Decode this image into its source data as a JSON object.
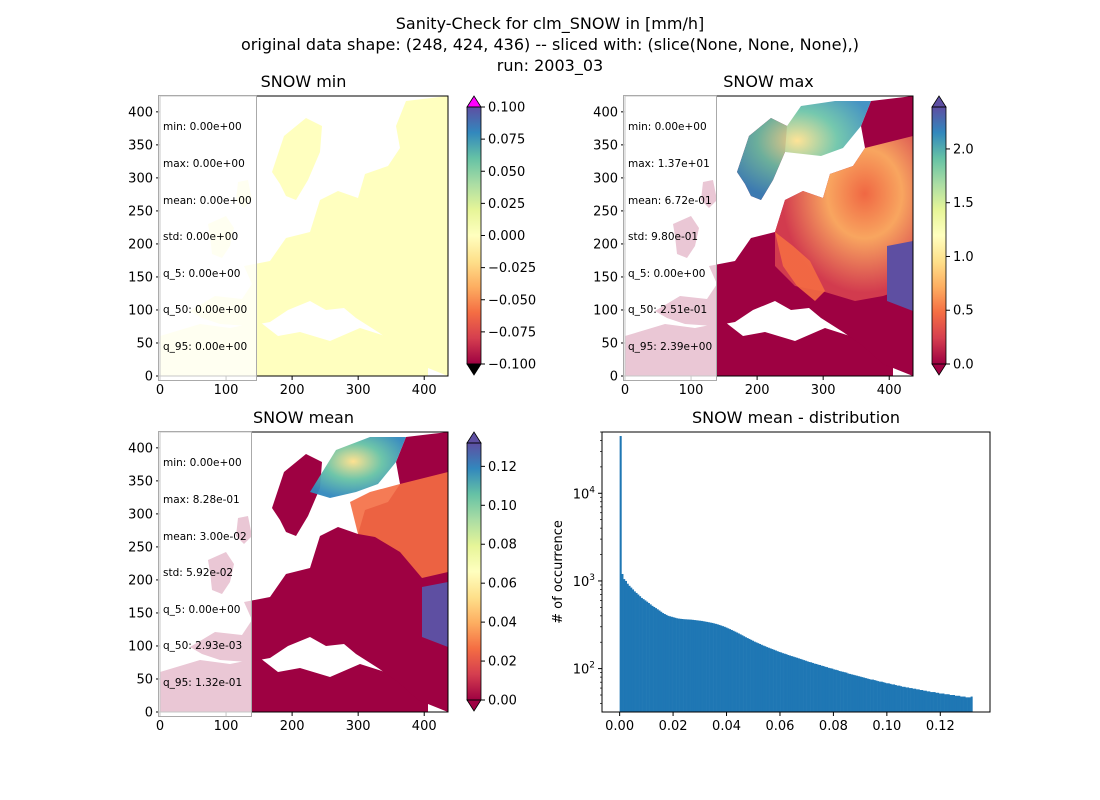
{
  "figure": {
    "title_lines": [
      "Sanity-Check for clm_SNOW in [mm/h]",
      "original data shape: (248, 424, 436) -- sliced with: (slice(None, None, None),)",
      "run: 2003_03"
    ]
  },
  "panels": [
    {
      "title": "SNOW min",
      "stats": [
        "min: 0.00e+00",
        "max: 0.00e+00",
        "mean: 0.00e+00",
        "std: 0.00e+00",
        "q_5: 0.00e+00",
        "q_50: 0.00e+00",
        "q_95: 0.00e+00"
      ],
      "colorbar_ticks": [
        "0.100",
        "0.075",
        "0.050",
        "0.025",
        "0.000",
        "−0.025",
        "−0.050",
        "−0.075",
        "−0.100"
      ]
    },
    {
      "title": "SNOW max",
      "stats": [
        "min: 0.00e+00",
        "max: 1.37e+01",
        "mean: 6.72e-01",
        "std: 9.80e-01",
        "q_5: 0.00e+00",
        "q_50: 2.51e-01",
        "q_95: 2.39e+00"
      ],
      "colorbar_ticks": [
        "2.0",
        "1.5",
        "1.0",
        "0.5",
        "0.0"
      ]
    },
    {
      "title": "SNOW mean",
      "stats": [
        "min: 0.00e+00",
        "max: 8.28e-01",
        "mean: 3.00e-02",
        "std: 5.92e-02",
        "q_5: 0.00e+00",
        "q_50: 2.93e-03",
        "q_95: 1.32e-01"
      ],
      "colorbar_ticks": [
        "0.12",
        "0.10",
        "0.08",
        "0.06",
        "0.04",
        "0.02",
        "0.00"
      ]
    }
  ],
  "colors": {
    "spectral_low": "#9e0142",
    "spectral_high": "#5e4fa2",
    "over_magenta": "#ff00ff",
    "under_black": "#000000",
    "min_fill": "#ffffbf",
    "hist_bar": "#1f77b4"
  },
  "chart_data": [
    {
      "type": "heatmap",
      "title": "SNOW min",
      "x_ticks": [
        0,
        100,
        200,
        300,
        400
      ],
      "y_ticks": [
        0,
        50,
        100,
        150,
        200,
        250,
        300,
        350,
        400
      ],
      "xlim": [
        0,
        436
      ],
      "ylim": [
        0,
        424
      ],
      "colorbar_range": [
        -0.1,
        0.1
      ]
    },
    {
      "type": "heatmap",
      "title": "SNOW max",
      "x_ticks": [
        0,
        100,
        200,
        300,
        400
      ],
      "y_ticks": [
        0,
        50,
        100,
        150,
        200,
        250,
        300,
        350,
        400
      ],
      "xlim": [
        0,
        436
      ],
      "ylim": [
        0,
        424
      ],
      "colorbar_range": [
        0,
        2.39
      ]
    },
    {
      "type": "heatmap",
      "title": "SNOW mean",
      "x_ticks": [
        0,
        100,
        200,
        300,
        400
      ],
      "y_ticks": [
        0,
        50,
        100,
        150,
        200,
        250,
        300,
        350,
        400
      ],
      "xlim": [
        0,
        436
      ],
      "ylim": [
        0,
        424
      ],
      "colorbar_range": [
        0,
        0.132
      ]
    },
    {
      "type": "bar",
      "title": "SNOW mean - distribution",
      "ylabel": "# of occurrence",
      "y_scale": "log",
      "xlim": [
        -0.0066,
        0.1386
      ],
      "ylim": [
        32,
        50000
      ],
      "x_ticks": [
        "0.00",
        "0.02",
        "0.04",
        "0.06",
        "0.08",
        "0.10",
        "0.12"
      ],
      "y_tick_exponents": [
        2,
        3,
        4
      ],
      "bin_range": [
        0,
        0.132
      ],
      "bins": 200,
      "counts": [
        45000,
        1200,
        1050,
        1000,
        930,
        880,
        840,
        800,
        760,
        730,
        700,
        670,
        640,
        620,
        600,
        580,
        560,
        540,
        520,
        505,
        490,
        475,
        460,
        445,
        430,
        420,
        410,
        400,
        395,
        390,
        385,
        380,
        375,
        372,
        370,
        368,
        366,
        365,
        364,
        363,
        362,
        360,
        358,
        356,
        354,
        352,
        350,
        347,
        344,
        341,
        338,
        335,
        332,
        328,
        324,
        320,
        315,
        310,
        305,
        300,
        294,
        288,
        282,
        276,
        270,
        264,
        258,
        252,
        246,
        240,
        234,
        228,
        223,
        218,
        213,
        208,
        203,
        199,
        195,
        191,
        187,
        183,
        180,
        176,
        173,
        170,
        167,
        164,
        161,
        158,
        155,
        153,
        150,
        148,
        146,
        143,
        141,
        139,
        137,
        135,
        133,
        131,
        129,
        127,
        125,
        123,
        121,
        119,
        118,
        116,
        114,
        113,
        111,
        110,
        108,
        107,
        105,
        104,
        102,
        101,
        100,
        98,
        97,
        96,
        94,
        93,
        92,
        91,
        90,
        88,
        87,
        86,
        85,
        84,
        83,
        82,
        81,
        80,
        79,
        78,
        77,
        76,
        75,
        75,
        74,
        73,
        72,
        71,
        71,
        70,
        69,
        68,
        68,
        67,
        66,
        66,
        65,
        64,
        64,
        63,
        62,
        62,
        61,
        61,
        60,
        60,
        59,
        59,
        58,
        58,
        57,
        57,
        56,
        56,
        55,
        55,
        54,
        54,
        54,
        53,
        53,
        52,
        52,
        52,
        51,
        51,
        51,
        50,
        50,
        50,
        49,
        49,
        49,
        48,
        48,
        48,
        47,
        47,
        47,
        48
      ]
    }
  ]
}
